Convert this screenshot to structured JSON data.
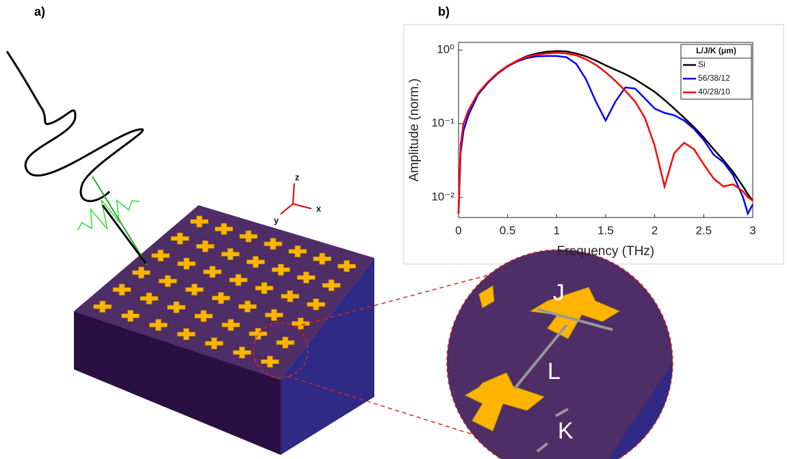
{
  "panels": {
    "a": "a)",
    "b": "b)"
  },
  "illustration": {
    "axes": [
      "z",
      "x",
      "y"
    ],
    "dims": [
      "J",
      "L",
      "K"
    ]
  },
  "chart_data": {
    "type": "line",
    "xlabel": "Frequency (THz)",
    "ylabel": "Amplitude (norm.)",
    "legend_title": "L/J/K (μm)",
    "legend": "upper right",
    "log_y": true,
    "xlim": [
      0,
      3
    ],
    "ylim": [
      0.0053,
      1.27
    ],
    "xticks": [
      0,
      0.5,
      1,
      1.5,
      2,
      2.5,
      3
    ],
    "yticks": [
      {
        "value": 0.01,
        "label": "10⁻²"
      },
      {
        "value": 0.1,
        "label": "10⁻¹"
      },
      {
        "value": 1,
        "label": "10⁰"
      }
    ],
    "x": [
      0,
      0.02,
      0.05,
      0.1,
      0.2,
      0.3,
      0.4,
      0.5,
      0.6,
      0.7,
      0.8,
      0.9,
      1.0,
      1.1,
      1.2,
      1.3,
      1.4,
      1.5,
      1.6,
      1.7,
      1.8,
      1.9,
      2.0,
      2.1,
      2.2,
      2.3,
      2.4,
      2.5,
      2.6,
      2.7,
      2.8,
      2.9,
      2.95,
      3.0
    ],
    "series": [
      {
        "name": "Si",
        "color": "#000000",
        "values": [
          0.006,
          0.04,
          0.08,
          0.13,
          0.25,
          0.36,
          0.48,
          0.6,
          0.72,
          0.83,
          0.9,
          0.95,
          0.97,
          0.96,
          0.9,
          0.82,
          0.72,
          0.62,
          0.54,
          0.47,
          0.4,
          0.33,
          0.27,
          0.21,
          0.16,
          0.12,
          0.09,
          0.065,
          0.045,
          0.032,
          0.022,
          0.014,
          0.011,
          0.009
        ]
      },
      {
        "name": "56/38/12",
        "color": "#0000ff",
        "values": [
          0.006,
          0.04,
          0.08,
          0.13,
          0.25,
          0.36,
          0.48,
          0.6,
          0.7,
          0.78,
          0.82,
          0.83,
          0.83,
          0.8,
          0.65,
          0.4,
          0.2,
          0.11,
          0.2,
          0.31,
          0.3,
          0.22,
          0.16,
          0.14,
          0.13,
          0.11,
          0.085,
          0.06,
          0.038,
          0.03,
          0.02,
          0.01,
          0.006,
          0.008
        ]
      },
      {
        "name": "40/28/10",
        "color": "#ff0000",
        "values": [
          0.006,
          0.05,
          0.1,
          0.15,
          0.26,
          0.37,
          0.49,
          0.61,
          0.72,
          0.81,
          0.87,
          0.9,
          0.92,
          0.9,
          0.85,
          0.75,
          0.63,
          0.5,
          0.38,
          0.28,
          0.2,
          0.12,
          0.05,
          0.014,
          0.04,
          0.055,
          0.045,
          0.028,
          0.018,
          0.014,
          0.015,
          0.012,
          0.01,
          0.009
        ]
      }
    ]
  }
}
